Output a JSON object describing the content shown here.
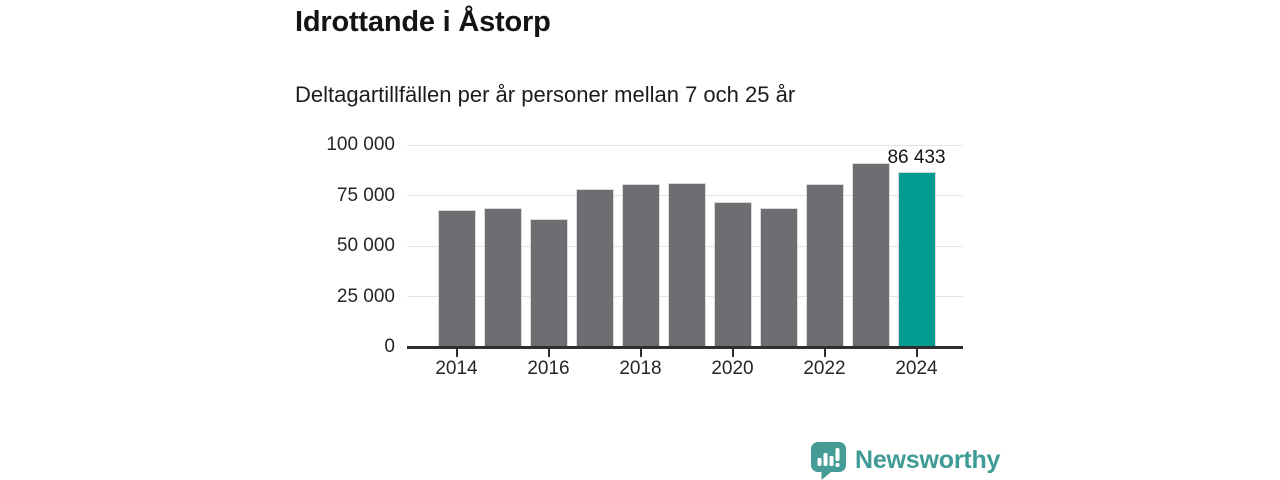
{
  "title": "Idrottande i Åstorp",
  "subtitle": "Deltagartillfällen per år personer mellan 7 och 25 år",
  "chart_data": {
    "type": "bar",
    "categories": [
      "2014",
      "2015",
      "2016",
      "2017",
      "2018",
      "2019",
      "2020",
      "2021",
      "2022",
      "2023",
      "2024"
    ],
    "values": [
      67800,
      68800,
      63400,
      78200,
      80500,
      81300,
      71800,
      68600,
      80800,
      90900,
      86433
    ],
    "title": "Idrottande i Åstorp",
    "subtitle": "Deltagartillfällen per år personer mellan 7 och 25 år",
    "xlabel": "",
    "ylabel": "",
    "ylim": [
      0,
      100000
    ],
    "ytick_values": [
      0,
      25000,
      50000,
      75000,
      100000
    ],
    "ytick_labels": [
      "0",
      "25 000",
      "50 000",
      "75 000",
      "100 000"
    ],
    "xtick_labels": [
      "2014",
      "2016",
      "2018",
      "2020",
      "2022",
      "2024"
    ],
    "xtick_indices": [
      0,
      2,
      4,
      6,
      8,
      10
    ],
    "grid": "horizontal",
    "legend": "none",
    "bar_color": "#6e6d72",
    "highlight_index": 10,
    "highlight_color": "#009c92",
    "highlight_value_label": "86 433"
  },
  "branding": {
    "logo_text": "Newsworthy",
    "logo_color": "#3f9b96",
    "logo_icon": "speech-bubble-bar-chart-icon"
  }
}
